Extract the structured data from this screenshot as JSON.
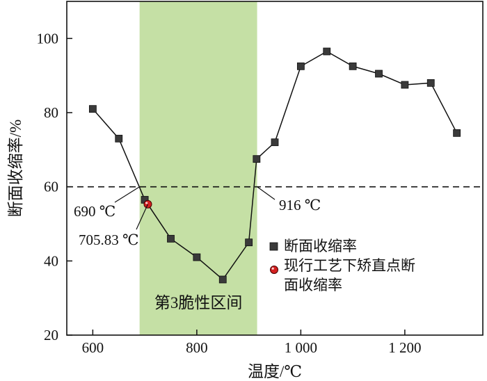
{
  "chart_data": {
    "type": "line",
    "xlabel": "温度/℃",
    "ylabel": "断面收缩率/%",
    "xlim": [
      550,
      1350
    ],
    "ylim": [
      20,
      110
    ],
    "x_ticks": [
      600,
      800,
      1000,
      1200
    ],
    "x_tick_labels": [
      "600",
      "800",
      "1 000",
      "1 200"
    ],
    "y_ticks": [
      20,
      40,
      60,
      80,
      100
    ],
    "y_tick_labels": [
      "20",
      "40",
      "60",
      "80",
      "100"
    ],
    "grid": false,
    "legend_position": "center-right",
    "series": [
      {
        "name": "断面收缩率",
        "marker": "square",
        "color": "#3a3a3a",
        "x": [
          600,
          650,
          700,
          750,
          800,
          850,
          900,
          915,
          950,
          1000,
          1050,
          1100,
          1150,
          1200,
          1250,
          1300
        ],
        "y": [
          81,
          73,
          56.5,
          46,
          41,
          35,
          45,
          67.5,
          72,
          92.5,
          96.5,
          92.5,
          90.5,
          87.5,
          88,
          74.5
        ]
      },
      {
        "name": "现行工艺下矫直点断面收缩率",
        "marker": "circle",
        "color": "#d42020",
        "x": [
          705.83
        ],
        "y": [
          55.3
        ]
      }
    ],
    "reference_line": {
      "y": 60,
      "style": "dashed"
    },
    "shaded_region": {
      "x_start": 690,
      "x_end": 916,
      "color": "#c5e0a5",
      "label": "第3脆性区间"
    },
    "annotations": [
      {
        "text": "690 ℃",
        "x": 690,
        "y": 60
      },
      {
        "text": "916 ℃",
        "x": 916,
        "y": 60
      },
      {
        "text": "705.83 ℃",
        "x": 705.83,
        "y": 55.3
      }
    ]
  }
}
